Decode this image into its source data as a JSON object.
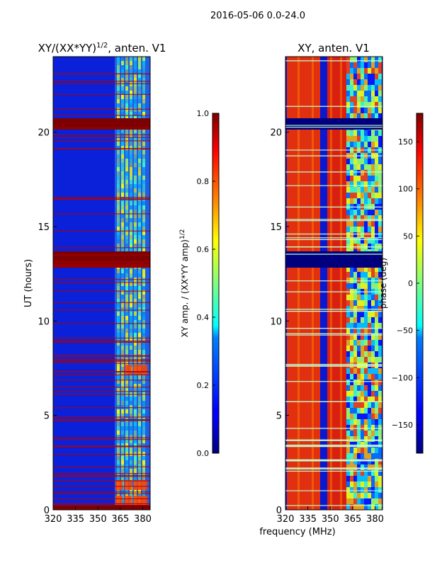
{
  "suptitle": "2016-05-06 0.0-24.0",
  "shared_xlabel": "frequency (MHz)",
  "chart_data": [
    {
      "type": "heatmap",
      "title_base": "XY/(XX*YY)",
      "title_sup": "1/2",
      "title_tail": ", anten. V1",
      "ylabel": "UT (hours)",
      "xlim": [
        320,
        385
      ],
      "ylim": [
        0,
        24
      ],
      "xticks": [
        320,
        335,
        350,
        365,
        380
      ],
      "yticks": [
        0,
        5,
        10,
        15,
        20
      ],
      "colorbar": {
        "label_base": "XY amp. / (XX*YY amp)",
        "label_sup": "1/2",
        "range": [
          0.0,
          1.0
        ],
        "ticks": [
          "0.0",
          "0.2",
          "0.4",
          "0.6",
          "0.8",
          "1.0"
        ],
        "colormap": "jet"
      }
    },
    {
      "type": "heatmap",
      "title": "XY, anten. V1",
      "ylabel": "",
      "xlim": [
        320,
        385
      ],
      "ylim": [
        0,
        24
      ],
      "xticks": [
        320,
        335,
        350,
        365,
        380
      ],
      "yticks": [
        0,
        5,
        10,
        15,
        20
      ],
      "colorbar": {
        "label": "phase (deg)",
        "range": [
          -180,
          180
        ],
        "ticks": [
          "−150",
          "−100",
          "−50",
          "0",
          "50",
          "100",
          "150"
        ],
        "tick_values": [
          -150,
          -100,
          -50,
          0,
          50,
          100,
          150
        ],
        "colormap": "jet"
      }
    }
  ]
}
